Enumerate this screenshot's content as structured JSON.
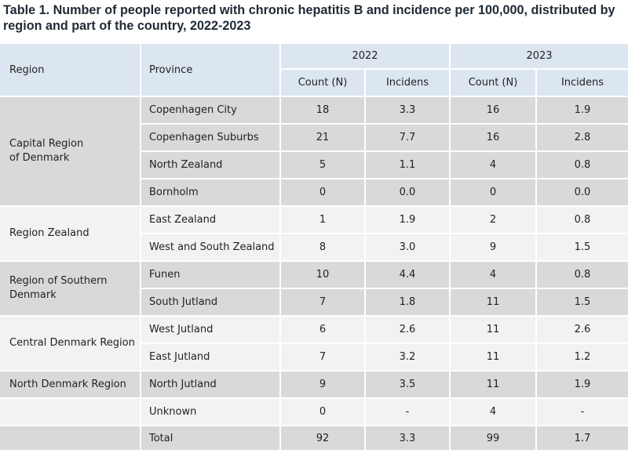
{
  "title": "Table 1. Number of people reported with chronic hepatitis B and incidence per 100,000, distributed by region and part of the country, 2022-2023",
  "headers": {
    "region": "Region",
    "province": "Province",
    "year1": "2022",
    "year2": "2023",
    "count": "Count (N)",
    "incidence": "Incidens"
  },
  "regions": {
    "capital": "Capital Region of Denmark",
    "zealand": "Region Zealand",
    "southern": "Region of Southern Denmark",
    "central": "Central Denmark Region",
    "north": "North Denmark Region"
  },
  "rows": [
    {
      "province": "Copenhagen City",
      "c2022": "18",
      "i2022": "3.3",
      "c2023": "16",
      "i2023": "1.9"
    },
    {
      "province": "Copenhagen Suburbs",
      "c2022": "21",
      "i2022": "7.7",
      "c2023": "16",
      "i2023": "2.8"
    },
    {
      "province": "North Zealand",
      "c2022": "5",
      "i2022": "1.1",
      "c2023": "4",
      "i2023": "0.8"
    },
    {
      "province": "Bornholm",
      "c2022": "0",
      "i2022": "0.0",
      "c2023": "0",
      "i2023": "0.0"
    },
    {
      "province": "East Zealand",
      "c2022": "1",
      "i2022": "1.9",
      "c2023": "2",
      "i2023": "0.8"
    },
    {
      "province": "West and South Zealand",
      "c2022": "8",
      "i2022": "3.0",
      "c2023": "9",
      "i2023": "1.5"
    },
    {
      "province": "Funen",
      "c2022": "10",
      "i2022": "4.4",
      "c2023": "4",
      "i2023": "0.8"
    },
    {
      "province": "South Jutland",
      "c2022": "7",
      "i2022": "1.8",
      "c2023": "11",
      "i2023": "1.5"
    },
    {
      "province": "West Jutland",
      "c2022": "6",
      "i2022": "2.6",
      "c2023": "11",
      "i2023": "2.6"
    },
    {
      "province": "East Jutland",
      "c2022": "7",
      "i2022": "3.2",
      "c2023": "11",
      "i2023": "1.2"
    },
    {
      "province": "North Jutland",
      "c2022": "9",
      "i2022": "3.5",
      "c2023": "11",
      "i2023": "1.9"
    },
    {
      "province": "Unknown",
      "c2022": "0",
      "i2022": "-",
      "c2023": "4",
      "i2023": "-"
    },
    {
      "province": "Total",
      "c2022": "92",
      "i2022": "3.3",
      "c2023": "99",
      "i2023": "1.7"
    }
  ],
  "colors": {
    "header_bg": "#dce6f0",
    "row_dark": "#d9d9d9",
    "row_light": "#f2f2f2"
  }
}
